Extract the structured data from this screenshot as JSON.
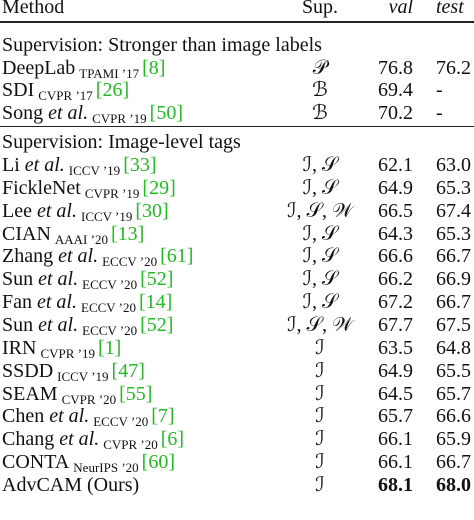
{
  "header": {
    "method": "Method",
    "sup": "Sup.",
    "val": "val",
    "test": "test"
  },
  "sections": [
    {
      "title": "Supervision: Stronger than image labels",
      "rows": [
        {
          "name": "DeepLab",
          "venue": "TPAMI ’17",
          "ref": "[8]",
          "sup": "𝒫",
          "val": "76.8",
          "test": "76.2"
        },
        {
          "name": "SDI",
          "venue": "CVPR ’17",
          "ref": "[26]",
          "sup": "ℬ",
          "val": "69.4",
          "test": "-"
        },
        {
          "name": "Song",
          "etal": "et al.",
          "venue": "CVPR ’19",
          "ref": "[50]",
          "sup": "ℬ",
          "val": "70.2",
          "test": "-"
        }
      ]
    },
    {
      "title": "Supervision: Image-level tags",
      "rows": [
        {
          "name": "Li",
          "etal": "et al.",
          "venue": "ICCV ’19",
          "ref": "[33]",
          "sup": "ℐ, 𝒮",
          "val": "62.1",
          "test": "63.0"
        },
        {
          "name": "FickleNet",
          "venue": "CVPR ’19",
          "ref": "[29]",
          "sup": "ℐ, 𝒮",
          "val": "64.9",
          "test": "65.3"
        },
        {
          "name": "Lee",
          "etal": "et al.",
          "venue": "ICCV ’19",
          "ref": "[30]",
          "sup": "ℐ, 𝒮, 𝒲",
          "val": "66.5",
          "test": "67.4"
        },
        {
          "name": "CIAN",
          "venue": "AAAI ’20",
          "ref": "[13]",
          "sup": "ℐ, 𝒮",
          "val": "64.3",
          "test": "65.3"
        },
        {
          "name": "Zhang",
          "etal": "et al.",
          "venue": "ECCV ’20",
          "ref": "[61]",
          "sup": "ℐ, 𝒮",
          "val": "66.6",
          "test": "66.7"
        },
        {
          "name": "Sun",
          "etal": "et al.",
          "venue": "ECCV ’20",
          "ref": "[52]",
          "sup": "ℐ, 𝒮",
          "val": "66.2",
          "test": "66.9"
        },
        {
          "name": "Fan",
          "etal": "et al.",
          "venue": "ECCV ’20",
          "ref": "[14]",
          "sup": "ℐ, 𝒮",
          "val": "67.2",
          "test": "66.7"
        },
        {
          "name": "Sun",
          "etal": "et al.",
          "venue": "ECCV ’20",
          "ref": "[52]",
          "sup": "ℐ, 𝒮, 𝒲",
          "val": "67.7",
          "test": "67.5"
        },
        {
          "name": "IRN",
          "venue": "CVPR ’19",
          "ref": "[1]",
          "sup": "ℐ",
          "val": "63.5",
          "test": "64.8"
        },
        {
          "name": "SSDD",
          "venue": "ICCV ’19",
          "ref": "[47]",
          "sup": "ℐ",
          "val": "64.9",
          "test": "65.5"
        },
        {
          "name": "SEAM",
          "venue": "CVPR ’20",
          "ref": "[55]",
          "sup": "ℐ",
          "val": "64.5",
          "test": "65.7"
        },
        {
          "name": "Chen",
          "etal": "et al.",
          "venue": "ECCV ’20",
          "ref": "[7]",
          "sup": "ℐ",
          "val": "65.7",
          "test": "66.6"
        },
        {
          "name": "Chang",
          "etal": "et al.",
          "venue": "CVPR ’20",
          "ref": "[6]",
          "sup": "ℐ",
          "val": "66.1",
          "test": "65.9"
        },
        {
          "name": "CONTA",
          "venue": "NeurIPS ’20",
          "ref": "[60]",
          "sup": "ℐ",
          "val": "66.1",
          "test": "66.7"
        },
        {
          "name": "AdvCAM (Ours)",
          "sup": "ℐ",
          "val": "68.1",
          "test": "68.0",
          "bold": true
        }
      ]
    }
  ]
}
